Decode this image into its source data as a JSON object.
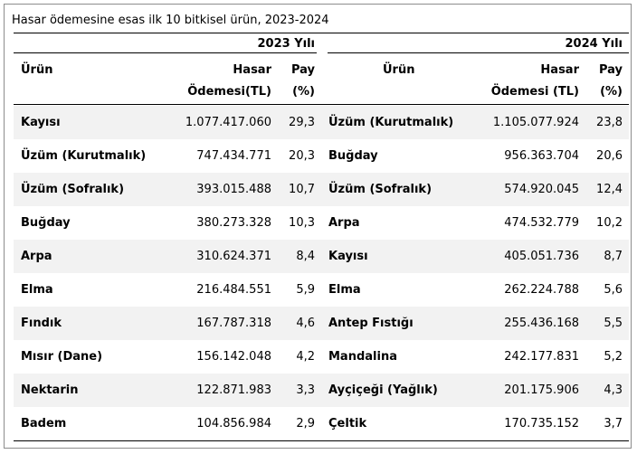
{
  "title": "Hasar ödemesine esas ilk 10 bitkisel ürün, 2023-2024",
  "years": {
    "left": "2023 Yılı",
    "right": "2024 Yılı"
  },
  "headers": {
    "product": "Ürün",
    "payment_line1": "Hasar",
    "payment_left_line2": "Ödemesi(TL)",
    "payment_right_line2": "Ödemesi (TL)",
    "share_line1": "Pay",
    "share_line2": "(%)"
  },
  "rows": [
    {
      "p2023": "Kayısı",
      "v2023": "1.077.417.060",
      "s2023": "29,3",
      "p2024": "Üzüm (Kurutmalık)",
      "v2024": "1.105.077.924",
      "s2024": "23,8"
    },
    {
      "p2023": "Üzüm (Kurutmalık)",
      "v2023": "747.434.771",
      "s2023": "20,3",
      "p2024": "Buğday",
      "v2024": "956.363.704",
      "s2024": "20,6"
    },
    {
      "p2023": "Üzüm (Sofralık)",
      "v2023": "393.015.488",
      "s2023": "10,7",
      "p2024": "Üzüm (Sofralık)",
      "v2024": "574.920.045",
      "s2024": "12,4"
    },
    {
      "p2023": "Buğday",
      "v2023": "380.273.328",
      "s2023": "10,3",
      "p2024": "Arpa",
      "v2024": "474.532.779",
      "s2024": "10,2"
    },
    {
      "p2023": "Arpa",
      "v2023": "310.624.371",
      "s2023": "8,4",
      "p2024": "Kayısı",
      "v2024": "405.051.736",
      "s2024": "8,7"
    },
    {
      "p2023": "Elma",
      "v2023": "216.484.551",
      "s2023": "5,9",
      "p2024": "Elma",
      "v2024": "262.224.788",
      "s2024": "5,6"
    },
    {
      "p2023": "Fındık",
      "v2023": "167.787.318",
      "s2023": "4,6",
      "p2024": "Antep Fıstığı",
      "v2024": "255.436.168",
      "s2024": "5,5"
    },
    {
      "p2023": "Mısır (Dane)",
      "v2023": "156.142.048",
      "s2023": "4,2",
      "p2024": "Mandalina",
      "v2024": "242.177.831",
      "s2024": "5,2"
    },
    {
      "p2023": "Nektarin",
      "v2023": "122.871.983",
      "s2023": "3,3",
      "p2024": "Ayçiçeği (Yağlık)",
      "v2024": "201.175.906",
      "s2024": "4,3"
    },
    {
      "p2023": "Badem",
      "v2023": "104.856.984",
      "s2023": "2,9",
      "p2024": "Çeltik",
      "v2024": "170.735.152",
      "s2024": "3,7"
    }
  ]
}
